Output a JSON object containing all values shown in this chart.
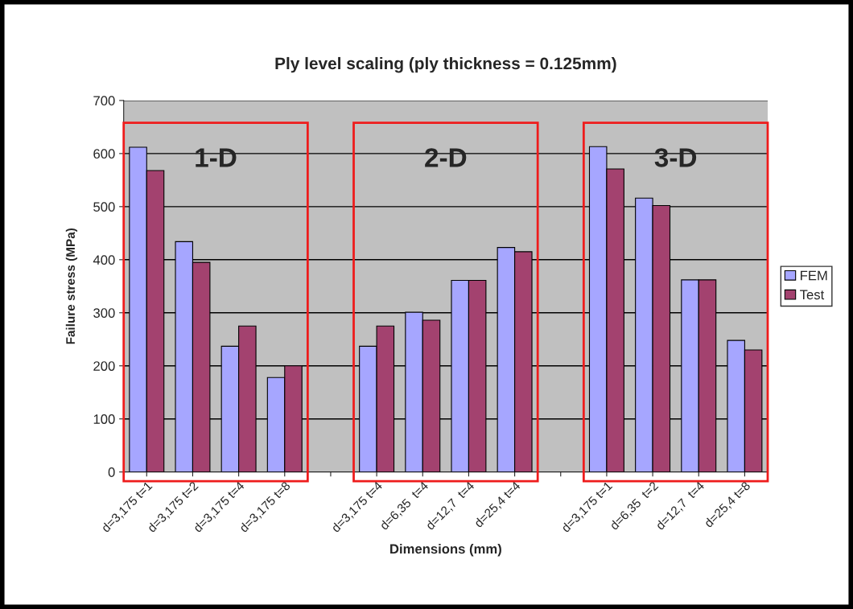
{
  "chart_data": {
    "type": "bar",
    "title": "Ply level scaling (ply thickness = 0.125mm)",
    "xlabel": "Dimensions (mm)",
    "ylabel": "Failure stress (MPa)",
    "categories": [
      "d=3,175 t=1",
      "d=3,175 t=2",
      "d=3,175 t=4",
      "d=3,175 t=8",
      null,
      "d=3,175 t=4",
      "d=6,35  t=4",
      "d=12,7  t=4",
      "d=25,4 t=4",
      null,
      "d=3,175 t=1",
      "d=6,35  t=2",
      "d=12,7  t=4",
      "d=25,4 t=8"
    ],
    "series": [
      {
        "name": "FEM",
        "color": "#a6a6ff",
        "values": [
          612,
          434,
          237,
          178,
          null,
          237,
          301,
          361,
          423,
          null,
          613,
          516,
          362,
          248
        ]
      },
      {
        "name": "Test",
        "color": "#a3426f",
        "values": [
          568,
          395,
          275,
          200,
          null,
          275,
          286,
          361,
          415,
          null,
          571,
          502,
          362,
          230
        ]
      }
    ],
    "annotations": [
      "1-D",
      "2-D",
      "3-D"
    ],
    "ylim": [
      0,
      700
    ],
    "yticks": [
      0,
      100,
      200,
      300,
      400,
      500,
      600,
      700
    ],
    "grid": "y",
    "legend": "right"
  }
}
